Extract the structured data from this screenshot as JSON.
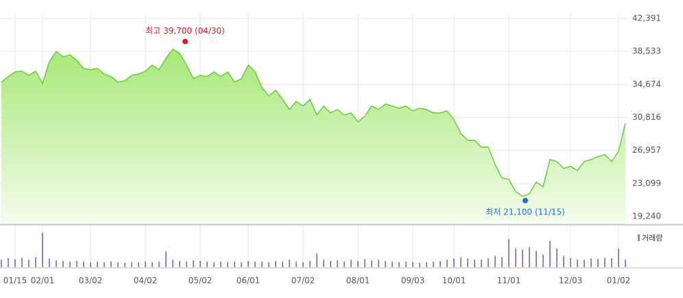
{
  "chart_data": [
    {
      "type": "line",
      "categories": [
        null,
        null,
        "01/15",
        null,
        null,
        null,
        "02/01",
        null,
        null,
        null,
        null,
        null,
        null,
        "03/02",
        null,
        null,
        null,
        null,
        null,
        null,
        null,
        "04/02",
        null,
        null,
        null,
        null,
        null,
        null,
        null,
        "05/02",
        null,
        null,
        null,
        null,
        null,
        null,
        "06/01",
        null,
        null,
        null,
        null,
        null,
        null,
        null,
        "07/02",
        null,
        null,
        null,
        null,
        null,
        null,
        null,
        "08/01",
        null,
        null,
        null,
        null,
        null,
        null,
        null,
        "09/03",
        null,
        null,
        null,
        null,
        null,
        "10/01",
        null,
        null,
        null,
        null,
        null,
        null,
        null,
        "11/01",
        null,
        null,
        null,
        null,
        null,
        null,
        null,
        null,
        "12/03",
        null,
        null,
        null,
        null,
        null,
        null,
        "01/02",
        null
      ],
      "series": [
        {
          "color": "#6cc93a",
          "values": [
            34950,
            35600,
            36150,
            36230,
            35750,
            36230,
            34790,
            37350,
            38550,
            37900,
            38150,
            37500,
            36550,
            36390,
            36550,
            35900,
            35600,
            34950,
            35100,
            35750,
            35900,
            36230,
            36950,
            36390,
            37750,
            38800,
            38300,
            36950,
            35350,
            35750,
            35600,
            36150,
            35600,
            36150,
            34950,
            35350,
            36950,
            36150,
            34310,
            33350,
            34000,
            32950,
            31750,
            32700,
            32150,
            32950,
            31100,
            32150,
            31350,
            31750,
            31100,
            31350,
            30300,
            30950,
            32150,
            31750,
            32390,
            32150,
            31900,
            32150,
            31590,
            31900,
            31750,
            31350,
            31350,
            31590,
            30550,
            28950,
            28150,
            28150,
            27350,
            27350,
            25340,
            23740,
            23580,
            22140,
            21600,
            21900,
            23260,
            22700,
            25900,
            25660,
            24860,
            25100,
            24620,
            25660,
            25900,
            26230,
            26460,
            25660,
            26860,
            30150
          ]
        }
      ],
      "ylim": [
        18280,
        42950
      ],
      "yticks": [
        {
          "value": 42391,
          "label": "42,391"
        },
        {
          "value": 38533,
          "label": "38,533"
        },
        {
          "value": 34674,
          "label": "34,674"
        },
        {
          "value": 30816,
          "label": "30,816"
        },
        {
          "value": 26957,
          "label": "26,957"
        },
        {
          "value": 23099,
          "label": "23,099"
        },
        {
          "value": 19240,
          "label": "19,240"
        }
      ],
      "grid": true,
      "annotations": [
        {
          "text": "최고 39,700 (04/30)",
          "value": 39700,
          "color": "#e8141c"
        },
        {
          "text": "최저 21,100 (11/15)",
          "value": 21100,
          "color": "#1d6fd6"
        }
      ]
    },
    {
      "type": "bar",
      "series": [
        {
          "name": "거래량",
          "color": "#9b80c8",
          "values": [
            12,
            14,
            13,
            15,
            12,
            16,
            55,
            14,
            11,
            10,
            9,
            10,
            9,
            8,
            9,
            8,
            9,
            8,
            7,
            8,
            8,
            9,
            8,
            9,
            25,
            12,
            10,
            9,
            11,
            10,
            9,
            8,
            9,
            8,
            9,
            8,
            10,
            9,
            9,
            8,
            10,
            9,
            12,
            9,
            8,
            10,
            22,
            12,
            10,
            11,
            9,
            12,
            10,
            13,
            11,
            12,
            10,
            9,
            8,
            9,
            8,
            7,
            8,
            9,
            10,
            12,
            14,
            16,
            14,
            12,
            12,
            14,
            18,
            16,
            45,
            30,
            28,
            32,
            26,
            20,
            42,
            30,
            18,
            14,
            12,
            12,
            14,
            13,
            15,
            14,
            30,
            12
          ]
        }
      ],
      "ylim": [
        0,
        60
      ]
    }
  ]
}
